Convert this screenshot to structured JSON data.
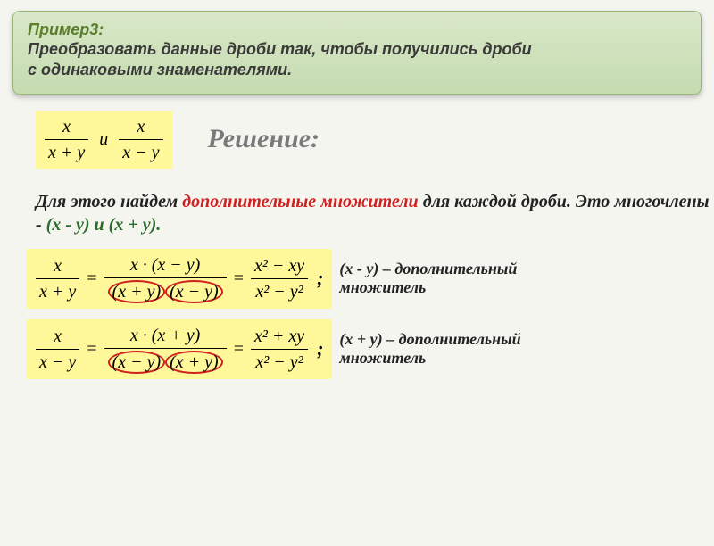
{
  "header": {
    "title": "Пример3:",
    "line1": "Преобразовать данные дроби так, чтобы получились дроби",
    "line2": " с одинаковыми знаменателями."
  },
  "solution_label": "Решение:",
  "intro_frac1": {
    "num": "x",
    "den": "x + y"
  },
  "intro_and": "и",
  "intro_frac2": {
    "num": "x",
    "den": "x − y"
  },
  "explain": {
    "part1": "Для этого  найдем ",
    "red": "дополнительные множители",
    "part2": " для каждой дроби. Это многочлены  -  ",
    "poly1": "(x - y)",
    "and": "  и  ",
    "poly2": "(x + y)."
  },
  "chain1": {
    "f1": {
      "num": "x",
      "den": "x + y"
    },
    "f2": {
      "num": "x · (x − y)",
      "den_a": "(x + y)",
      "den_b": "(x − y)"
    },
    "f3": {
      "num": "x² − xy",
      "den": "x² − y²"
    },
    "annot1": "(x - y) – дополнительный",
    "annot2": " множитель"
  },
  "chain2": {
    "f1": {
      "num": "x",
      "den": "x − y"
    },
    "f2": {
      "num": "x · (x + y)",
      "den_a": "(x − y)",
      "den_b": "(x + y)"
    },
    "f3": {
      "num": "x² + xy",
      "den": "x² − y²"
    },
    "annot1": "(x + y) – дополнительный",
    "annot2": "множитель"
  },
  "colors": {
    "header_bg_top": "#d9e8c8",
    "header_bg_bottom": "#c5dbb0",
    "header_title": "#5a7d2a",
    "yellow": "#fff89a",
    "red": "#d02020",
    "green": "#2a6a2a",
    "grey": "#7a7a7a",
    "page_bg": "#f5f5f0"
  }
}
